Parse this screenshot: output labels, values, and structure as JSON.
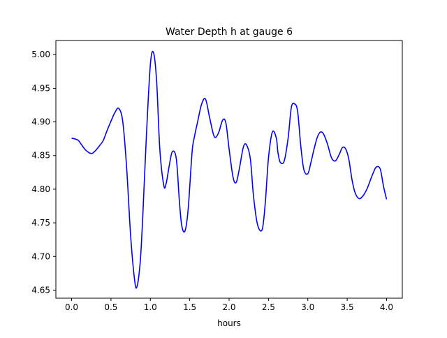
{
  "chart_data": {
    "type": "line",
    "title": "Water Depth h at gauge 6",
    "xlabel": "hours",
    "ylabel": "",
    "xlim": [
      -0.2,
      4.2
    ],
    "ylim": [
      4.638,
      5.021
    ],
    "x_ticks": [
      0.0,
      0.5,
      1.0,
      1.5,
      2.0,
      2.5,
      3.0,
      3.5,
      4.0
    ],
    "x_tick_labels": [
      "0.0",
      "0.5",
      "1.0",
      "1.5",
      "2.0",
      "2.5",
      "3.0",
      "3.5",
      "4.0"
    ],
    "y_ticks": [
      4.65,
      4.7,
      4.75,
      4.8,
      4.85,
      4.9,
      4.95,
      5.0
    ],
    "y_tick_labels": [
      "4.65",
      "4.70",
      "4.75",
      "4.80",
      "4.85",
      "4.90",
      "4.95",
      "5.00"
    ],
    "grid": false,
    "series": [
      {
        "color": "#0000ff",
        "x": [
          0.0,
          0.08,
          0.12,
          0.18,
          0.25,
          0.3,
          0.35,
          0.4,
          0.45,
          0.5,
          0.55,
          0.6,
          0.65,
          0.7,
          0.75,
          0.8,
          0.83,
          0.87,
          0.9,
          0.95,
          1.0,
          1.04,
          1.08,
          1.12,
          1.17,
          1.2,
          1.24,
          1.28,
          1.33,
          1.37,
          1.4,
          1.44,
          1.48,
          1.53,
          1.56,
          1.6,
          1.65,
          1.7,
          1.75,
          1.8,
          1.83,
          1.87,
          1.92,
          1.96,
          2.0,
          2.05,
          2.09,
          2.13,
          2.18,
          2.22,
          2.27,
          2.31,
          2.36,
          2.42,
          2.46,
          2.5,
          2.55,
          2.6,
          2.62,
          2.65,
          2.7,
          2.75,
          2.79,
          2.83,
          2.87,
          2.91,
          2.95,
          3.0,
          3.04,
          3.08,
          3.12,
          3.16,
          3.2,
          3.25,
          3.3,
          3.35,
          3.4,
          3.44,
          3.48,
          3.52,
          3.56,
          3.6,
          3.65,
          3.7,
          3.75,
          3.79,
          3.83,
          3.87,
          3.92,
          3.96,
          4.0
        ],
        "y": [
          4.876,
          4.873,
          4.867,
          4.858,
          4.853,
          4.857,
          4.864,
          4.872,
          4.887,
          4.901,
          4.914,
          4.92,
          4.9,
          4.83,
          4.73,
          4.665,
          4.655,
          4.69,
          4.75,
          4.88,
          4.985,
          5.003,
          4.96,
          4.86,
          4.806,
          4.808,
          4.835,
          4.856,
          4.845,
          4.78,
          4.745,
          4.738,
          4.77,
          4.855,
          4.878,
          4.9,
          4.926,
          4.934,
          4.908,
          4.882,
          4.877,
          4.885,
          4.903,
          4.898,
          4.86,
          4.818,
          4.81,
          4.83,
          4.862,
          4.866,
          4.845,
          4.79,
          4.748,
          4.74,
          4.78,
          4.846,
          4.885,
          4.876,
          4.855,
          4.84,
          4.842,
          4.876,
          4.921,
          4.927,
          4.916,
          4.865,
          4.829,
          4.823,
          4.84,
          4.86,
          4.877,
          4.885,
          4.882,
          4.867,
          4.847,
          4.842,
          4.852,
          4.862,
          4.86,
          4.845,
          4.815,
          4.795,
          4.786,
          4.79,
          4.8,
          4.812,
          4.824,
          4.833,
          4.83,
          4.805,
          4.785
        ]
      }
    ]
  }
}
